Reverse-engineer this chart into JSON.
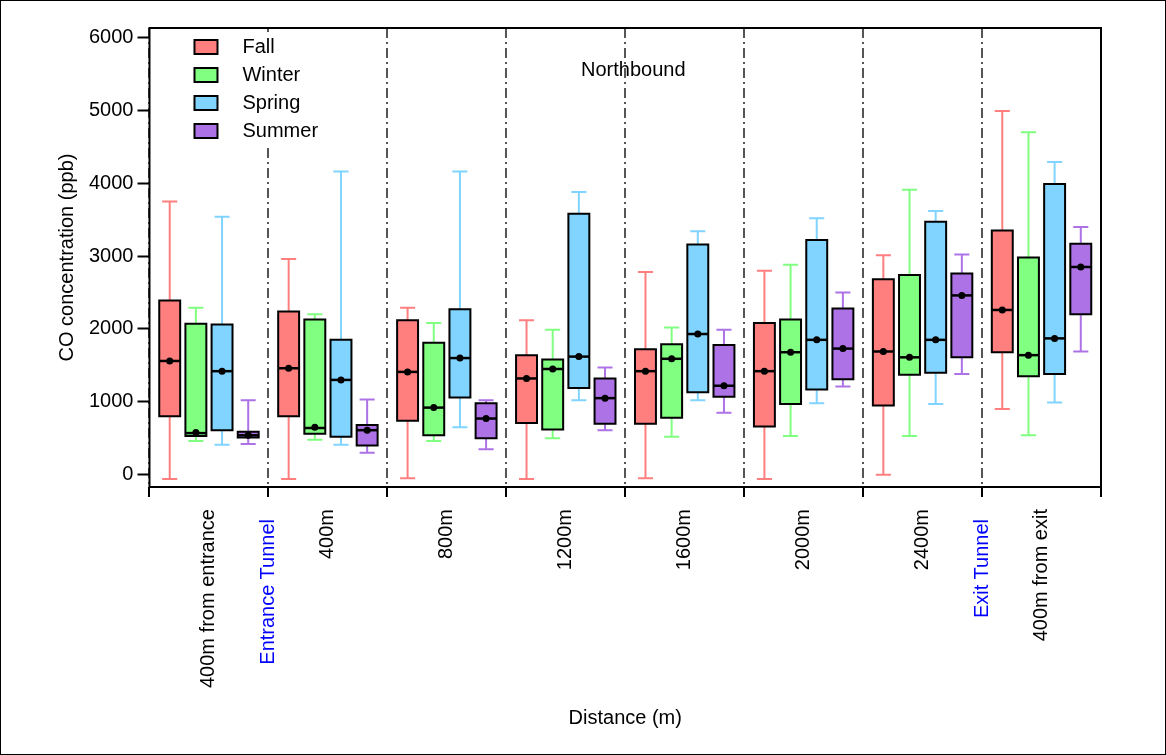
{
  "chart_data": {
    "type": "box",
    "title": "Northbound",
    "xlabel": "Distance (m)",
    "ylabel": "CO concentration (ppb)",
    "categories": [
      "400m from entrance",
      "400m",
      "800m",
      "1200m",
      "1600m",
      "2000m",
      "2400m",
      "400m from exit"
    ],
    "annotations": [
      "Entrance Tunnel",
      "Exit Tunnel"
    ],
    "ylim": [
      -170,
      6130
    ],
    "yticks": [
      0,
      1000,
      2000,
      3000,
      4000,
      5000,
      6000
    ],
    "grid": "x",
    "legend": "top left",
    "series": [
      {
        "name": "Fall",
        "color": "#ff7f7f",
        "boxes": [
          {
            "low": -60,
            "q1": 800,
            "median": 1560,
            "mean": 1560,
            "q3": 2390,
            "high": 3750
          },
          {
            "low": -60,
            "q1": 800,
            "median": 1460,
            "mean": 1460,
            "q3": 2240,
            "high": 2960
          },
          {
            "low": -50,
            "q1": 740,
            "median": 1410,
            "mean": 1410,
            "q3": 2120,
            "high": 2290
          },
          {
            "low": -60,
            "q1": 710,
            "median": 1320,
            "mean": 1320,
            "q3": 1640,
            "high": 2120
          },
          {
            "low": -50,
            "q1": 700,
            "median": 1420,
            "mean": 1420,
            "q3": 1720,
            "high": 2780
          },
          {
            "low": -60,
            "q1": 660,
            "median": 1420,
            "mean": 1420,
            "q3": 2080,
            "high": 2800
          },
          {
            "low": 0,
            "q1": 950,
            "median": 1690,
            "mean": 1690,
            "q3": 2680,
            "high": 3010
          },
          {
            "low": 900,
            "q1": 1680,
            "median": 2260,
            "mean": 2260,
            "q3": 3350,
            "high": 4990
          }
        ]
      },
      {
        "name": "Winter",
        "color": "#80ff80",
        "boxes": [
          {
            "low": 460,
            "q1": 530,
            "median": 570,
            "mean": 580,
            "q3": 2070,
            "high": 2290
          },
          {
            "low": 480,
            "q1": 560,
            "median": 640,
            "mean": 650,
            "q3": 2130,
            "high": 2200
          },
          {
            "low": 460,
            "q1": 540,
            "median": 920,
            "mean": 920,
            "q3": 1810,
            "high": 2080
          },
          {
            "low": 500,
            "q1": 620,
            "median": 1450,
            "mean": 1450,
            "q3": 1580,
            "high": 1990
          },
          {
            "low": 520,
            "q1": 780,
            "median": 1590,
            "mean": 1590,
            "q3": 1790,
            "high": 2020
          },
          {
            "low": 530,
            "q1": 970,
            "median": 1680,
            "mean": 1680,
            "q3": 2130,
            "high": 2880
          },
          {
            "low": 530,
            "q1": 1370,
            "median": 1610,
            "mean": 1610,
            "q3": 2740,
            "high": 3910
          },
          {
            "low": 540,
            "q1": 1350,
            "median": 1640,
            "mean": 1640,
            "q3": 2980,
            "high": 4700
          }
        ]
      },
      {
        "name": "Spring",
        "color": "#80d4ff",
        "boxes": [
          {
            "low": 410,
            "q1": 610,
            "median": 1420,
            "mean": 1420,
            "q3": 2060,
            "high": 3540
          },
          {
            "low": 410,
            "q1": 520,
            "median": 1300,
            "mean": 1300,
            "q3": 1850,
            "high": 4160
          },
          {
            "low": 650,
            "q1": 1060,
            "median": 1600,
            "mean": 1600,
            "q3": 2270,
            "high": 4160
          },
          {
            "low": 1020,
            "q1": 1190,
            "median": 1620,
            "mean": 1620,
            "q3": 3580,
            "high": 3880
          },
          {
            "low": 1020,
            "q1": 1130,
            "median": 1930,
            "mean": 1930,
            "q3": 3160,
            "high": 3340
          },
          {
            "low": 980,
            "q1": 1170,
            "median": 1850,
            "mean": 1850,
            "q3": 3220,
            "high": 3520
          },
          {
            "low": 970,
            "q1": 1400,
            "median": 1850,
            "mean": 1850,
            "q3": 3470,
            "high": 3620
          },
          {
            "low": 990,
            "q1": 1380,
            "median": 1870,
            "mean": 1870,
            "q3": 3990,
            "high": 4290
          }
        ]
      },
      {
        "name": "Summer",
        "color": "#ad72e6",
        "boxes": [
          {
            "low": 420,
            "q1": 510,
            "median": 540,
            "mean": 540,
            "q3": 590,
            "high": 1020
          },
          {
            "low": 300,
            "q1": 400,
            "median": 610,
            "mean": 610,
            "q3": 680,
            "high": 1030
          },
          {
            "low": 350,
            "q1": 500,
            "median": 770,
            "mean": 770,
            "q3": 980,
            "high": 1020
          },
          {
            "low": 610,
            "q1": 700,
            "median": 1050,
            "mean": 1050,
            "q3": 1320,
            "high": 1470
          },
          {
            "low": 850,
            "q1": 1070,
            "median": 1220,
            "mean": 1220,
            "q3": 1780,
            "high": 1990
          },
          {
            "low": 1210,
            "q1": 1310,
            "median": 1730,
            "mean": 1730,
            "q3": 2280,
            "high": 2500
          },
          {
            "low": 1380,
            "q1": 1610,
            "median": 2460,
            "mean": 2460,
            "q3": 2760,
            "high": 3020
          },
          {
            "low": 1690,
            "q1": 2200,
            "median": 2850,
            "mean": 2850,
            "q3": 3170,
            "high": 3400
          }
        ]
      }
    ]
  }
}
